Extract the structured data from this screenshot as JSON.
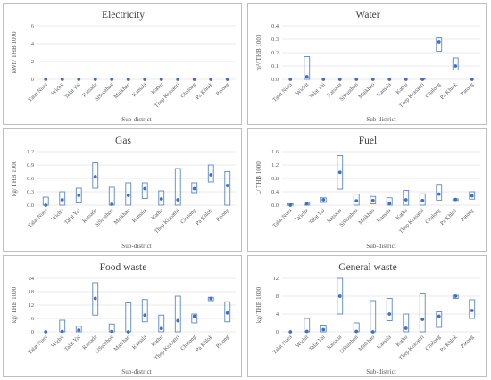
{
  "chart_data": [
    {
      "type": "box",
      "title": "Electricity",
      "xlabel": "Sub-district",
      "ylabel": "kWh/ THB 1000",
      "ylim": [
        0,
        6
      ],
      "yticks": [
        "0",
        "2",
        "4",
        "6"
      ],
      "categories": [
        "Talat Nuea",
        "Wichit",
        "Talat Yai",
        "Ratsada",
        "SiSunthon",
        "Maikhao",
        "Kamala",
        "Kathu",
        "Thep Krasattri",
        "Chalong",
        "Pa Khlok",
        "Patong"
      ],
      "box_low": [
        0,
        0,
        0,
        0,
        0,
        0,
        0,
        0,
        0,
        0,
        0,
        0
      ],
      "box_high": [
        0,
        0,
        0,
        0,
        0,
        0,
        0,
        0,
        0,
        0,
        0,
        0
      ],
      "values": [
        0,
        0,
        0,
        0,
        0,
        0,
        0,
        0,
        0,
        0,
        0,
        0
      ]
    },
    {
      "type": "box",
      "title": "Water",
      "xlabel": "Sub-district",
      "ylabel": "m³/ THB 1000",
      "ylim": [
        0,
        0.4
      ],
      "yticks": [
        "0.0",
        "0.1",
        "0.2",
        "0.3",
        "0.4"
      ],
      "categories": [
        "Talat Nuea",
        "Wichit",
        "Talat Yai",
        "Ratsada",
        "SiSunthon",
        "Maikhao",
        "Kamala",
        "Kathu",
        "Thep Krasattri",
        "Chalong",
        "Pa Khlok",
        "Patong"
      ],
      "box_low": [
        0,
        0,
        0,
        0,
        0,
        0,
        0,
        0,
        0,
        0.21,
        0.07,
        0
      ],
      "box_high": [
        0,
        0.17,
        0,
        0,
        0,
        0,
        0,
        0,
        0.005,
        0.31,
        0.16,
        0
      ],
      "values": [
        0,
        0.02,
        0,
        0,
        0,
        0,
        0,
        0,
        0,
        0.28,
        0.1,
        0
      ]
    },
    {
      "type": "box",
      "title": "Gas",
      "xlabel": "Sub-district",
      "ylabel": "kg/ THB 1000",
      "ylim": [
        0,
        1.2
      ],
      "yticks": [
        "0.0",
        "0.3",
        "0.6",
        "0.9",
        "1.2"
      ],
      "categories": [
        "Talat Nuea",
        "Wichit",
        "Talat Yai",
        "Ratsada",
        "SiSunthon",
        "Maikhao",
        "Kamala",
        "Kathu",
        "Thep Krasattri",
        "Chalong",
        "Pa Khlok",
        "Patong"
      ],
      "box_low": [
        0,
        0,
        0.05,
        0.38,
        0,
        0,
        0.15,
        0,
        0,
        0.28,
        0.52,
        0
      ],
      "box_high": [
        0.18,
        0.3,
        0.38,
        0.95,
        0.4,
        0.5,
        0.5,
        0.32,
        0.82,
        0.5,
        0.9,
        0.75
      ],
      "values": [
        0,
        0.12,
        0.22,
        0.64,
        0.02,
        0.22,
        0.37,
        0.14,
        0.12,
        0.37,
        0.68,
        0.44
      ]
    },
    {
      "type": "box",
      "title": "Fuel",
      "xlabel": "Sub-district",
      "ylabel": "L/ THB 1000",
      "ylim": [
        0,
        1.6
      ],
      "yticks": [
        "0.0",
        "0.4",
        "0.8",
        "1.2",
        "1.6"
      ],
      "categories": [
        "Talat Nuea",
        "Wichit",
        "Talat Yai",
        "Ratsada",
        "SiSunthon",
        "Maikhao",
        "Kamala",
        "Kathu",
        "Thep Krasattri",
        "Chalong",
        "Pa Khlok",
        "Patong"
      ],
      "box_low": [
        0,
        0,
        0.08,
        0.48,
        0,
        0.04,
        0,
        0,
        0,
        0.15,
        0.14,
        0.18
      ],
      "box_high": [
        0.04,
        0.09,
        0.22,
        1.48,
        0.33,
        0.26,
        0.22,
        0.44,
        0.34,
        0.62,
        0.19,
        0.4
      ],
      "values": [
        0,
        0.04,
        0.16,
        0.98,
        0.13,
        0.14,
        0.05,
        0.16,
        0.14,
        0.33,
        0.17,
        0.28
      ]
    },
    {
      "type": "box",
      "title": "Food waste",
      "xlabel": "Sub-district",
      "ylabel": "kg/ THB 1000",
      "ylim": [
        0,
        24
      ],
      "yticks": [
        "0",
        "6",
        "12",
        "18",
        "24"
      ],
      "categories": [
        "Talat Nuea",
        "Wichit",
        "Talat Yai",
        "Ratsada",
        "SiSunthon",
        "Maikhao",
        "Kamala",
        "Kathu",
        "Thep Krasattri",
        "Chalong",
        "Pa Khlok",
        "Patong"
      ],
      "box_low": [
        0,
        0,
        0,
        7.5,
        0,
        0,
        4.5,
        0,
        0,
        4,
        14,
        4.5
      ],
      "box_high": [
        0,
        5.2,
        2.5,
        22,
        3.5,
        13,
        14.5,
        7.5,
        16,
        8,
        15.5,
        13.5
      ],
      "values": [
        0,
        0.2,
        0.8,
        15,
        0.2,
        0,
        7.5,
        1.5,
        5,
        7,
        15,
        8.5
      ]
    },
    {
      "type": "box",
      "title": "General waste",
      "xlabel": "Sub-district",
      "ylabel": "kg/ THB 1000",
      "ylim": [
        0,
        12
      ],
      "yticks": [
        "0",
        "4",
        "8",
        "12"
      ],
      "categories": [
        "Talat Nuea",
        "Wichit",
        "Talat Yai",
        "Ratsada",
        "SiSunthon",
        "Maikhao",
        "Kamala",
        "Kathu",
        "Thep Krasattri",
        "Chalong",
        "Pa Khlok",
        "Patong"
      ],
      "box_low": [
        0,
        0,
        0,
        4,
        0,
        0,
        2.5,
        0,
        0,
        1,
        7.5,
        3
      ],
      "box_high": [
        0,
        3,
        1.5,
        12,
        2,
        7,
        7.5,
        4,
        8.5,
        4.5,
        8.2,
        7.2
      ],
      "values": [
        0,
        0.1,
        0.5,
        8,
        0.1,
        0,
        4,
        0.8,
        2.8,
        3.5,
        8,
        4.8
      ]
    }
  ]
}
